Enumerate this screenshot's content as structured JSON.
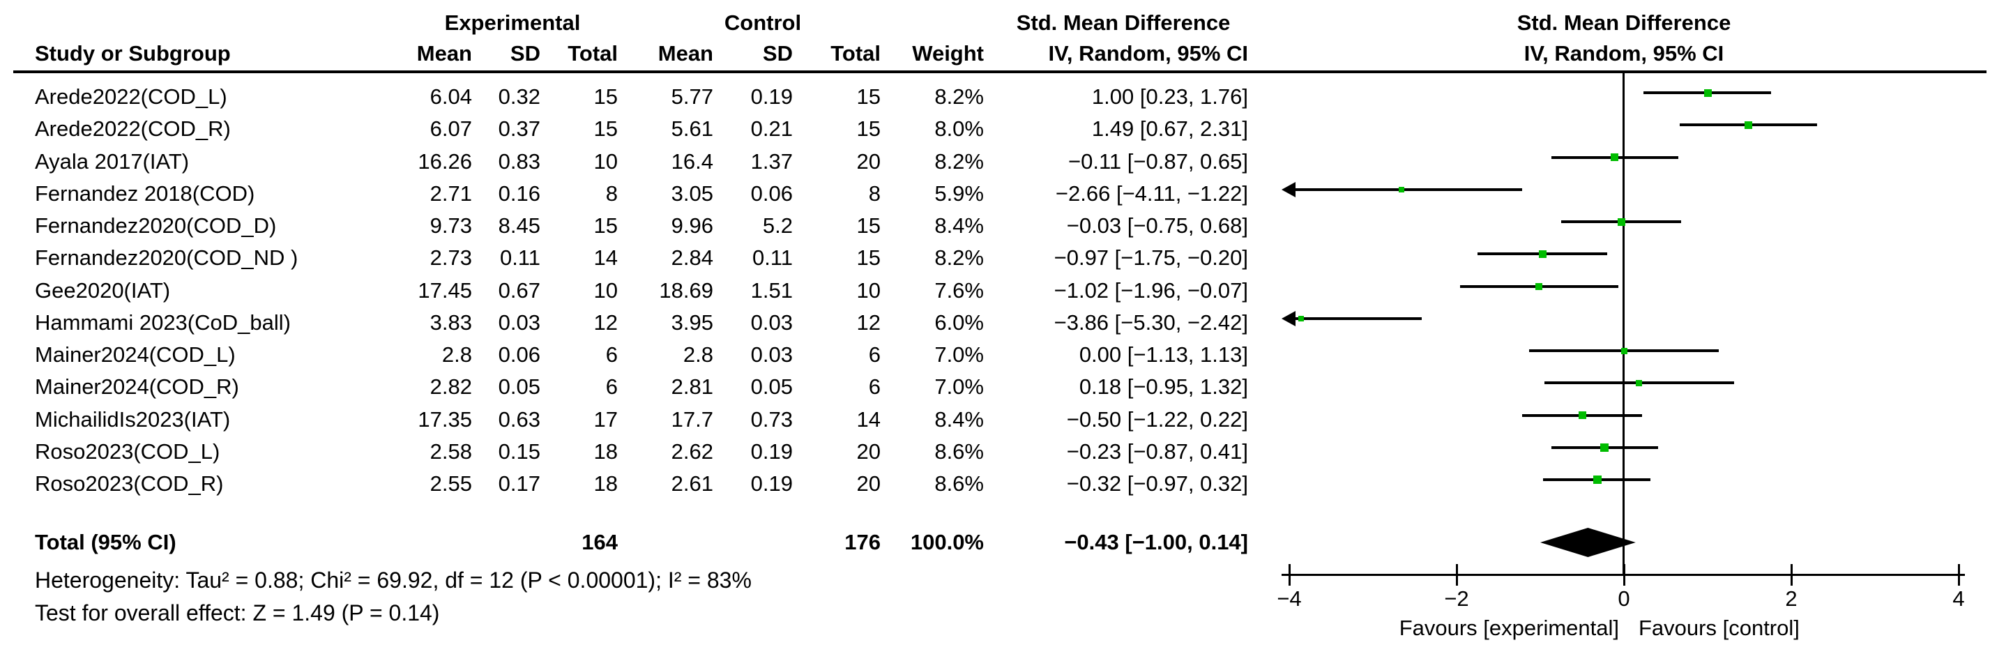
{
  "header": {
    "experimental_group": "Experimental",
    "control_group": "Control",
    "smd_column": "Std. Mean Difference",
    "smd_plot": "Std. Mean Difference",
    "study": "Study or Subgroup",
    "mean": "Mean",
    "sd": "SD",
    "total": "Total",
    "weight": "Weight",
    "iv_random": "IV, Random, 95% CI"
  },
  "chart_data": {
    "type": "forest",
    "effect_measure": "Std. Mean Difference, IV, Random, 95% CI",
    "marker_color": "#00BC00",
    "line_color": "#000000",
    "x_axis": {
      "xlim": [
        -4,
        4
      ],
      "ticks": [
        -4,
        -2,
        0,
        2,
        4
      ],
      "tick_labels": [
        "−4",
        "−2",
        "0",
        "2",
        "4"
      ],
      "left_label": "Favours [experimental]",
      "right_label": "Favours [control]"
    },
    "studies": [
      {
        "name": "Arede2022(COD_L)",
        "exp_mean": "6.04",
        "exp_sd": "0.32",
        "exp_total": "15",
        "ctl_mean": "5.77",
        "ctl_sd": "0.19",
        "ctl_total": "15",
        "weight": "8.2%",
        "ci": "1.00 [0.23, 1.76]",
        "smd": 1.0,
        "lo": 0.23,
        "hi": 1.76,
        "w": 8.2
      },
      {
        "name": "Arede2022(COD_R)",
        "exp_mean": "6.07",
        "exp_sd": "0.37",
        "exp_total": "15",
        "ctl_mean": "5.61",
        "ctl_sd": "0.21",
        "ctl_total": "15",
        "weight": "8.0%",
        "ci": "1.49 [0.67, 2.31]",
        "smd": 1.49,
        "lo": 0.67,
        "hi": 2.31,
        "w": 8.0
      },
      {
        "name": "Ayala 2017(IAT)",
        "exp_mean": "16.26",
        "exp_sd": "0.83",
        "exp_total": "10",
        "ctl_mean": "16.4",
        "ctl_sd": "1.37",
        "ctl_total": "20",
        "weight": "8.2%",
        "ci": "−0.11 [−0.87, 0.65]",
        "smd": -0.11,
        "lo": -0.87,
        "hi": 0.65,
        "w": 8.2
      },
      {
        "name": "Fernandez 2018(COD)",
        "exp_mean": "2.71",
        "exp_sd": "0.16",
        "exp_total": "8",
        "ctl_mean": "3.05",
        "ctl_sd": "0.06",
        "ctl_total": "8",
        "weight": "5.9%",
        "ci": "−2.66 [−4.11, −1.22]",
        "smd": -2.66,
        "lo": -4.11,
        "hi": -1.22,
        "w": 5.9
      },
      {
        "name": "Fernandez2020(COD_D)",
        "exp_mean": "9.73",
        "exp_sd": "8.45",
        "exp_total": "15",
        "ctl_mean": "9.96",
        "ctl_sd": "5.2",
        "ctl_total": "15",
        "weight": "8.4%",
        "ci": "−0.03 [−0.75, 0.68]",
        "smd": -0.03,
        "lo": -0.75,
        "hi": 0.68,
        "w": 8.4
      },
      {
        "name": "Fernandez2020(COD_ND )",
        "exp_mean": "2.73",
        "exp_sd": "0.11",
        "exp_total": "14",
        "ctl_mean": "2.84",
        "ctl_sd": "0.11",
        "ctl_total": "15",
        "weight": "8.2%",
        "ci": "−0.97 [−1.75, −0.20]",
        "smd": -0.97,
        "lo": -1.75,
        "hi": -0.2,
        "w": 8.2
      },
      {
        "name": "Gee2020(IAT)",
        "exp_mean": "17.45",
        "exp_sd": "0.67",
        "exp_total": "10",
        "ctl_mean": "18.69",
        "ctl_sd": "1.51",
        "ctl_total": "10",
        "weight": "7.6%",
        "ci": "−1.02 [−1.96, −0.07]",
        "smd": -1.02,
        "lo": -1.96,
        "hi": -0.07,
        "w": 7.6
      },
      {
        "name": "Hammami 2023(CoD_ball)",
        "exp_mean": "3.83",
        "exp_sd": "0.03",
        "exp_total": "12",
        "ctl_mean": "3.95",
        "ctl_sd": "0.03",
        "ctl_total": "12",
        "weight": "6.0%",
        "ci": "−3.86 [−5.30, −2.42]",
        "smd": -3.86,
        "lo": -5.3,
        "hi": -2.42,
        "w": 6.0
      },
      {
        "name": "Mainer2024(COD_L)",
        "exp_mean": "2.8",
        "exp_sd": "0.06",
        "exp_total": "6",
        "ctl_mean": "2.8",
        "ctl_sd": "0.03",
        "ctl_total": "6",
        "weight": "7.0%",
        "ci": "0.00 [−1.13, 1.13]",
        "smd": 0.0,
        "lo": -1.13,
        "hi": 1.13,
        "w": 7.0
      },
      {
        "name": "Mainer2024(COD_R)",
        "exp_mean": "2.82",
        "exp_sd": "0.05",
        "exp_total": "6",
        "ctl_mean": "2.81",
        "ctl_sd": "0.05",
        "ctl_total": "6",
        "weight": "7.0%",
        "ci": "0.18 [−0.95, 1.32]",
        "smd": 0.18,
        "lo": -0.95,
        "hi": 1.32,
        "w": 7.0
      },
      {
        "name": "MichailidIs2023(IAT)",
        "exp_mean": "17.35",
        "exp_sd": "0.63",
        "exp_total": "17",
        "ctl_mean": "17.7",
        "ctl_sd": "0.73",
        "ctl_total": "14",
        "weight": "8.4%",
        "ci": "−0.50 [−1.22, 0.22]",
        "smd": -0.5,
        "lo": -1.22,
        "hi": 0.22,
        "w": 8.4
      },
      {
        "name": "Roso2023(COD_L)",
        "exp_mean": "2.58",
        "exp_sd": "0.15",
        "exp_total": "18",
        "ctl_mean": "2.62",
        "ctl_sd": "0.19",
        "ctl_total": "20",
        "weight": "8.6%",
        "ci": "−0.23 [−0.87, 0.41]",
        "smd": -0.23,
        "lo": -0.87,
        "hi": 0.41,
        "w": 8.6
      },
      {
        "name": "Roso2023(COD_R)",
        "exp_mean": "2.55",
        "exp_sd": "0.17",
        "exp_total": "18",
        "ctl_mean": "2.61",
        "ctl_sd": "0.19",
        "ctl_total": "20",
        "weight": "8.6%",
        "ci": "−0.32 [−0.97, 0.32]",
        "smd": -0.32,
        "lo": -0.97,
        "hi": 0.32,
        "w": 8.6
      }
    ],
    "total": {
      "label": "Total (95% CI)",
      "exp_total": "164",
      "ctl_total": "176",
      "weight": "100.0%",
      "ci": "−0.43 [−1.00, 0.14]",
      "smd": -0.43,
      "lo": -1.0,
      "hi": 0.14
    },
    "heterogeneity": "Heterogeneity: Tau² = 0.88; Chi² = 69.92, df = 12 (P < 0.00001); I² = 83%",
    "overall_effect": "Test for overall effect: Z = 1.49 (P = 0.14)"
  }
}
